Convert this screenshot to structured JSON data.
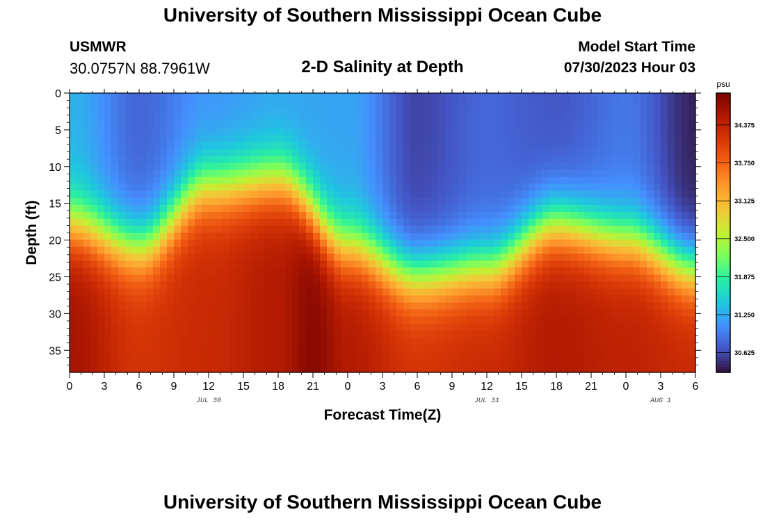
{
  "header": {
    "title": "University of Southern Mississippi Ocean Cube",
    "station": "USMWR",
    "coordinates": "30.0757N  88.7961W",
    "plot_title": "2-D Salinity at Depth",
    "model_start_label": "Model Start Time",
    "model_start_time": "07/30/2023 Hour 03"
  },
  "footer": {
    "title": "University of Southern Mississippi Ocean Cube"
  },
  "chart_data": {
    "type": "heatmap",
    "title": "2-D Salinity at Depth",
    "xlabel": "Forecast Time(Z)",
    "ylabel": "Depth (ft)",
    "x_tick_labels": [
      "0",
      "3",
      "6",
      "9",
      "12",
      "15",
      "18",
      "21",
      "0",
      "3",
      "6",
      "9",
      "12",
      "15",
      "18",
      "21",
      "0",
      "3",
      "6"
    ],
    "x_hours": [
      0,
      3,
      6,
      9,
      12,
      15,
      18,
      21,
      24,
      27,
      30,
      33,
      36,
      39,
      42,
      45,
      48,
      51,
      54
    ],
    "date_labels": [
      {
        "text": "JUL 30",
        "hour": 12
      },
      {
        "text": "JUL 31",
        "hour": 36
      },
      {
        "text": "AUG 1",
        "hour": 51
      }
    ],
    "ylim": [
      0,
      38
    ],
    "y_ticks": [
      0,
      5,
      10,
      15,
      20,
      25,
      30,
      35
    ],
    "y_reversed": true,
    "colorbar": {
      "unit": "psu",
      "min": 30.3,
      "max": 34.9,
      "ticks": [
        "30.625",
        "31.250",
        "31.875",
        "32.500",
        "33.125",
        "33.750",
        "34.375"
      ],
      "colors": [
        "#30123b",
        "#4454c4",
        "#4490fe",
        "#1fc8de",
        "#29efa2",
        "#7cfe5d",
        "#c3f034",
        "#f4c638",
        "#fe9b2d",
        "#f36315",
        "#d93807",
        "#b01901",
        "#7a0403"
      ]
    },
    "halocline_depth_ft": [
      {
        "hour": 0,
        "depth": 18
      },
      {
        "hour": 6,
        "depth": 21
      },
      {
        "hour": 12,
        "depth": 13
      },
      {
        "hour": 18,
        "depth": 12
      },
      {
        "hour": 24,
        "depth": 21
      },
      {
        "hour": 30,
        "depth": 25
      },
      {
        "hour": 36,
        "depth": 24
      },
      {
        "hour": 42,
        "depth": 18
      },
      {
        "hour": 48,
        "depth": 20
      },
      {
        "hour": 54,
        "depth": 24
      }
    ],
    "surface_salinity": [
      {
        "hour": 0,
        "value": 31.3
      },
      {
        "hour": 6,
        "value": 30.8
      },
      {
        "hour": 12,
        "value": 31.1
      },
      {
        "hour": 18,
        "value": 31.2
      },
      {
        "hour": 24,
        "value": 31.2
      },
      {
        "hour": 30,
        "value": 30.6
      },
      {
        "hour": 36,
        "value": 30.8
      },
      {
        "hour": 42,
        "value": 30.7
      },
      {
        "hour": 48,
        "value": 30.9
      },
      {
        "hour": 54,
        "value": 30.4
      }
    ],
    "bottom_salinity": [
      {
        "hour": 0,
        "value": 34.6
      },
      {
        "hour": 6,
        "value": 34.2
      },
      {
        "hour": 12,
        "value": 34.3
      },
      {
        "hour": 18,
        "value": 34.5
      },
      {
        "hour": 21,
        "value": 34.8
      },
      {
        "hour": 24,
        "value": 34.5
      },
      {
        "hour": 30,
        "value": 34.2
      },
      {
        "hour": 36,
        "value": 34.3
      },
      {
        "hour": 42,
        "value": 34.5
      },
      {
        "hour": 48,
        "value": 34.4
      },
      {
        "hour": 54,
        "value": 34.3
      }
    ]
  }
}
